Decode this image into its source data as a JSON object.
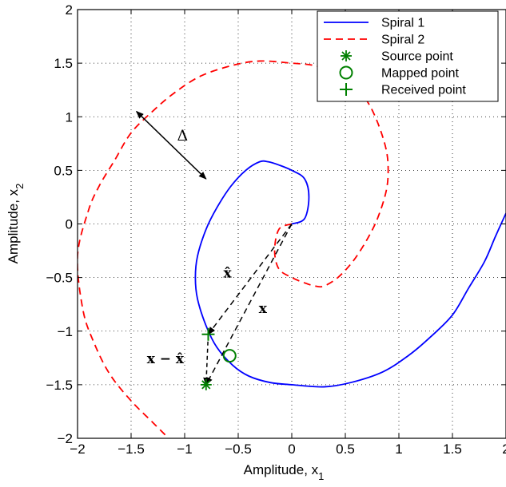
{
  "chart_data": {
    "type": "line",
    "xlabel": "Amplitude, x",
    "xlabel_sub": "1",
    "ylabel": "Amplitude, x",
    "ylabel_sub": "2",
    "xlim": [
      -2,
      2
    ],
    "ylim": [
      -2,
      2
    ],
    "xticks": [
      -2,
      -1.5,
      -1,
      -0.5,
      0,
      0.5,
      1,
      1.5,
      2
    ],
    "yticks": [
      -2,
      -1.5,
      -1,
      -0.5,
      0,
      0.5,
      1,
      1.5,
      2
    ],
    "xtick_labels": [
      "−2",
      "−1.5",
      "−1",
      "−0.5",
      "0",
      "0.5",
      "1",
      "1.5",
      "2"
    ],
    "ytick_labels": [
      "−2",
      "−1.5",
      "−1",
      "−0.5",
      "0",
      "0.5",
      "1",
      "1.5",
      "2"
    ],
    "grid": "dotted",
    "legend_position": "top-right",
    "series": [
      {
        "name": "Spiral 1",
        "style": "solid",
        "color": "#0000ff",
        "x": [
          0.0,
          0.12,
          0.16,
          0.12,
          0.0,
          -0.12,
          -0.22,
          -0.3,
          -0.43,
          -0.57,
          -0.7,
          -0.8,
          -0.88,
          -0.9,
          -0.88,
          -0.8,
          -0.7,
          -0.55,
          -0.4,
          -0.2,
          0.0,
          0.3,
          0.55,
          0.85,
          1.1,
          1.3,
          1.5,
          1.65,
          1.8,
          1.9,
          2.0
        ],
        "y": [
          0.0,
          0.05,
          0.25,
          0.42,
          0.5,
          0.55,
          0.58,
          0.58,
          0.5,
          0.35,
          0.15,
          -0.05,
          -0.3,
          -0.5,
          -0.7,
          -0.95,
          -1.15,
          -1.32,
          -1.42,
          -1.48,
          -1.5,
          -1.52,
          -1.48,
          -1.38,
          -1.22,
          -1.05,
          -0.85,
          -0.6,
          -0.35,
          -0.12,
          0.1
        ]
      },
      {
        "name": "Spiral 2",
        "style": "dashed",
        "color": "#ff0000",
        "x": [
          0.0,
          -0.12,
          -0.16,
          -0.12,
          0.0,
          0.12,
          0.22,
          0.3,
          0.43,
          0.57,
          0.7,
          0.8,
          0.88,
          0.9,
          0.88,
          0.8,
          0.7,
          0.55,
          0.4,
          0.2,
          0.0,
          -0.3,
          -0.55,
          -0.85,
          -1.1,
          -1.3,
          -1.5,
          -1.65,
          -1.8,
          -1.9,
          -2.0,
          -1.95,
          -1.85,
          -1.7,
          -1.5,
          -1.3,
          -1.15
        ],
        "y": [
          0.0,
          -0.05,
          -0.25,
          -0.42,
          -0.5,
          -0.55,
          -0.58,
          -0.58,
          -0.5,
          -0.35,
          -0.15,
          0.05,
          0.3,
          0.5,
          0.7,
          0.95,
          1.15,
          1.32,
          1.42,
          1.48,
          1.5,
          1.52,
          1.48,
          1.38,
          1.22,
          1.05,
          0.85,
          0.6,
          0.35,
          0.12,
          -0.3,
          -0.8,
          -1.1,
          -1.4,
          -1.65,
          -1.85,
          -2.0
        ]
      }
    ],
    "points": {
      "source": {
        "name": "Source point",
        "x": -0.8,
        "y": -1.5,
        "marker": "asterisk",
        "color": "#008000"
      },
      "mapped": {
        "name": "Mapped point",
        "x": -0.58,
        "y": -1.23,
        "marker": "circle",
        "color": "#008000"
      },
      "received": {
        "name": "Received point",
        "x": -0.78,
        "y": -1.03,
        "marker": "plus",
        "color": "#008000"
      }
    },
    "annotations": {
      "delta_label": "Δ",
      "delta_arrow": {
        "from": [
          -1.45,
          1.05
        ],
        "to": [
          -0.8,
          0.42
        ]
      },
      "x_hat_label": "x̂",
      "x_label": "x",
      "x_minus_x_hat_label": "x − x̂",
      "x_hat_label_pos": [
        -0.6,
        -0.5
      ],
      "x_label_pos": [
        -0.27,
        -0.83
      ],
      "x_minus_x_hat_label_pos": [
        -1.18,
        -1.3
      ]
    },
    "legend": [
      {
        "label": "Spiral 1",
        "style": "solid",
        "color": "#0000ff"
      },
      {
        "label": "Spiral 2",
        "style": "dashed",
        "color": "#ff0000"
      },
      {
        "label": "Source point",
        "marker": "asterisk",
        "color": "#008000"
      },
      {
        "label": "Mapped point",
        "marker": "circle",
        "color": "#008000"
      },
      {
        "label": "Received point",
        "marker": "plus",
        "color": "#008000"
      }
    ]
  }
}
